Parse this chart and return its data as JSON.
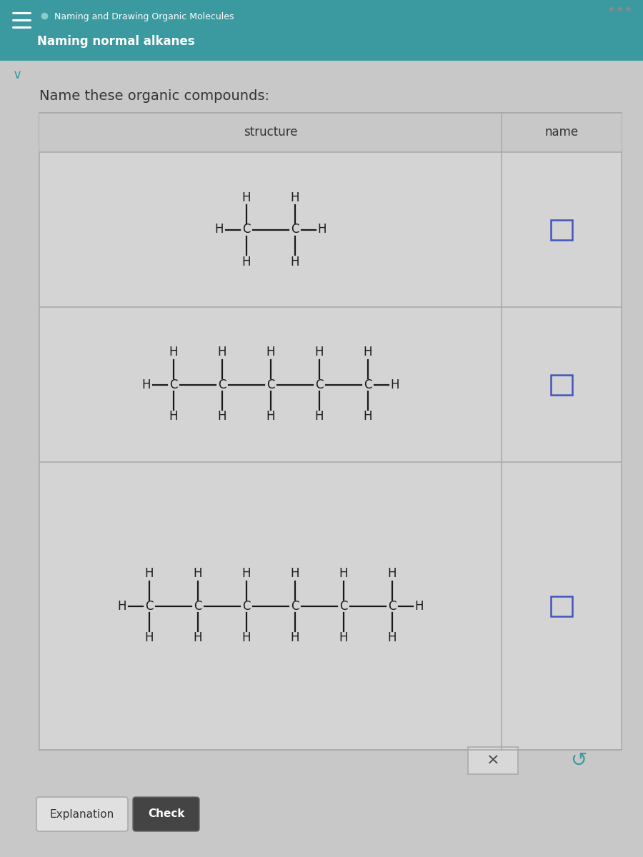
{
  "title_bar_color": "#3a9aa0",
  "title_text1": "Naming and Drawing Organic Molecules",
  "title_text2": "Naming normal alkanes",
  "page_bg": "#c8c8c8",
  "content_bg": "#d0d0d0",
  "table_bg": "#d4d4d4",
  "header_row_bg": "#c8c8c8",
  "table_border": "#aaaaaa",
  "atom_color": "#1a1a1a",
  "bond_color": "#1a1a1a",
  "input_box_color": "#4455bb",
  "header_text": "Name these organic compounds:",
  "col_header1": "structure",
  "col_header2": "name",
  "row1_carbons": 2,
  "row2_carbons": 5,
  "row3_carbons": 6,
  "font_size_title1": 9,
  "font_size_title2": 12,
  "font_size_header": 14,
  "font_size_col": 12,
  "font_size_atom": 12,
  "teal_color": "#3a9aa0",
  "white": "#ffffff",
  "dark_text": "#2a2a2a",
  "btn_check_bg": "#444444",
  "btn_expl_bg": "#e0e0e0",
  "x_btn_bg": "#d8d8d8",
  "x_btn_border": "#aaaaaa"
}
